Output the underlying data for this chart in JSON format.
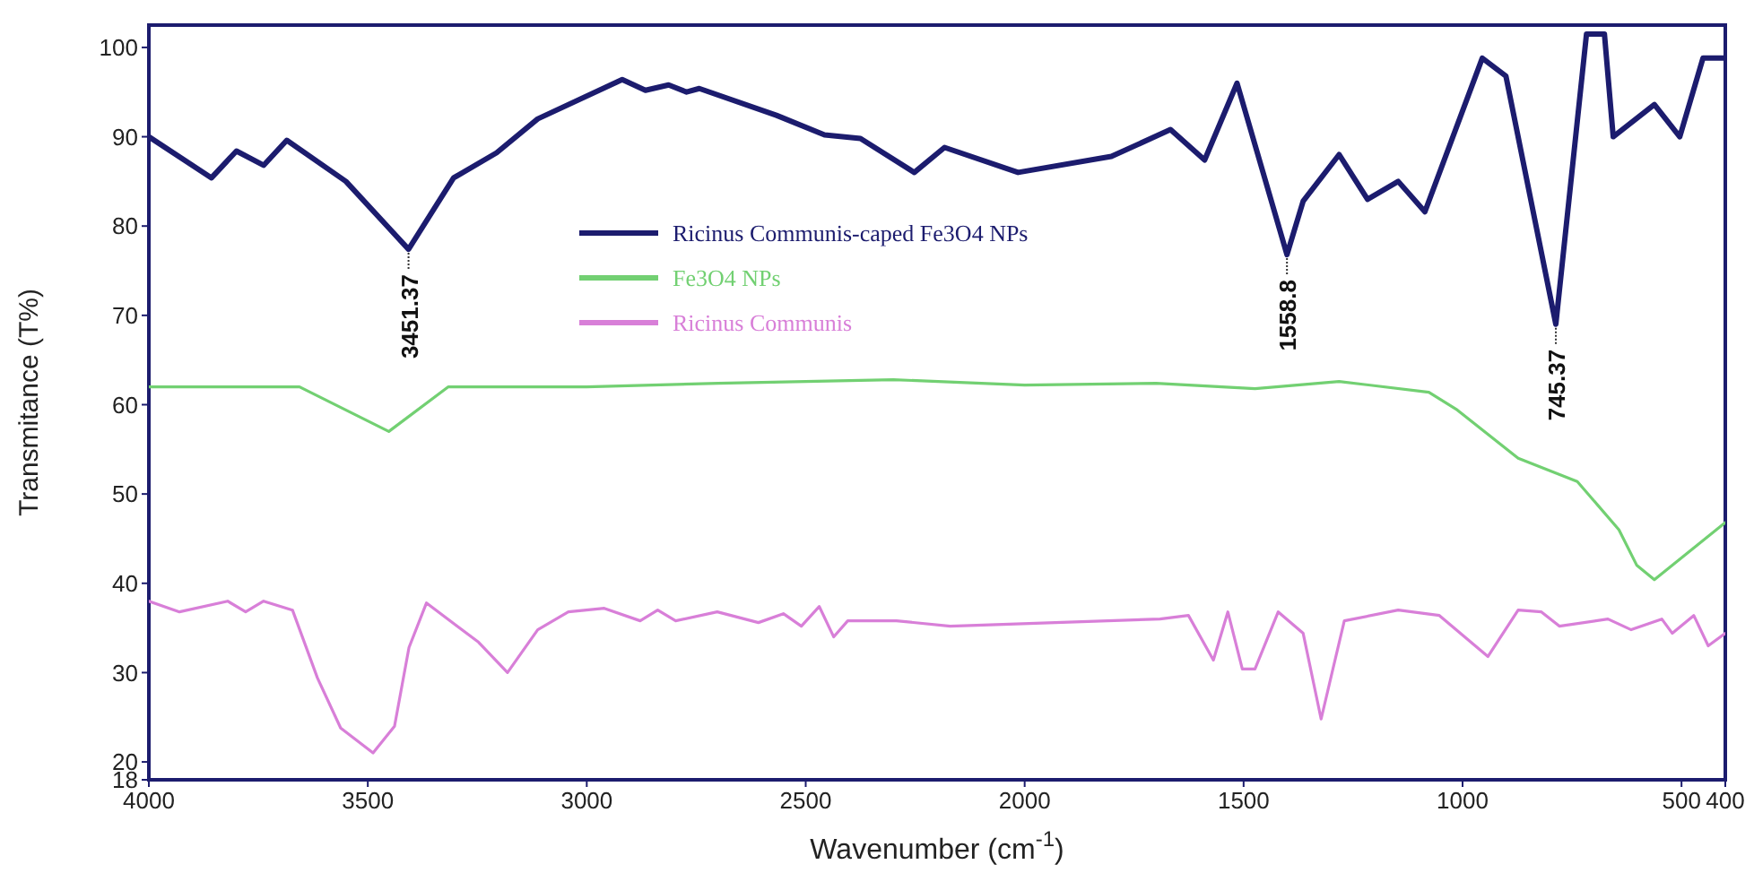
{
  "chart_data": {
    "type": "line",
    "xlabel": "Wavenumber (cm$^{-1}$)",
    "ylabel": "Transmitance (T%)",
    "xlim": [
      4000,
      400
    ],
    "xticks": [
      4000,
      3500,
      3000,
      2500,
      2000,
      1500,
      1000,
      500,
      400
    ],
    "ylim": [
      18,
      102.5
    ],
    "yticks": [
      18,
      20,
      30,
      40,
      50,
      60,
      70,
      80,
      90,
      100
    ],
    "grid": false,
    "legend": "top",
    "marker": "none",
    "line_style": "solid",
    "series": [
      {
        "name": "Ricinus Communis-caped Fe3O4 NPs",
        "color": "#1c1c6e",
        "x": [
          4000,
          3857,
          3800,
          3738,
          3685,
          3550,
          3407,
          3304,
          3206,
          3112,
          2919,
          2866,
          2813,
          2772,
          2743,
          2567,
          2457,
          2375,
          2252,
          2183,
          2015,
          1802,
          1667,
          1589,
          1515,
          1401,
          1364,
          1282,
          1217,
          1147,
          1086,
          955,
          901,
          787,
          717,
          676,
          656,
          562,
          504,
          451,
          400
        ],
        "values": [
          90,
          85.4,
          88.4,
          86.8,
          89.6,
          85,
          77.4,
          85.4,
          88.2,
          92,
          96.4,
          95.2,
          95.8,
          95,
          95.4,
          92.4,
          90.2,
          89.8,
          86,
          88.8,
          86,
          87.8,
          90.8,
          87.4,
          96,
          76.8,
          82.8,
          88,
          83,
          85,
          81.6,
          98.8,
          96.8,
          69,
          101.5,
          101.5,
          90,
          93.6,
          90,
          98.8,
          98.8
        ]
      },
      {
        "name": "Fe3O4 NPs",
        "color": "#72d072",
        "x": [
          4000,
          3656,
          3452,
          3316,
          3000,
          2700,
          2500,
          2300,
          2000,
          1700,
          1474,
          1282,
          1077,
          1012,
          873,
          738,
          643,
          602,
          562,
          400
        ],
        "values": [
          62,
          62,
          57,
          62,
          62,
          62.4,
          62.6,
          62.8,
          62.2,
          62.4,
          61.8,
          62.6,
          61.4,
          59.4,
          54,
          51.4,
          46,
          42,
          40.4,
          46.8
        ]
      },
      {
        "name": "Ricinus Communis",
        "color": "#d87fd8",
        "x": [
          4000,
          3930,
          3820,
          3779,
          3738,
          3672,
          3615,
          3562,
          3488,
          3439,
          3406,
          3366,
          3247,
          3181,
          3112,
          3042,
          2960,
          2878,
          2838,
          2797,
          2702,
          2608,
          2551,
          2510,
          2469,
          2436,
          2404,
          2293,
          2170,
          1691,
          1626,
          1569,
          1536,
          1503,
          1474,
          1421,
          1364,
          1323,
          1298,
          1270,
          1147,
          1053,
          942,
          873,
          820,
          779,
          668,
          615,
          545,
          521,
          472,
          439,
          400
        ],
        "values": [
          38,
          36.8,
          38,
          36.8,
          38,
          37,
          29.4,
          23.8,
          21,
          24,
          32.8,
          37.8,
          33.4,
          30,
          34.8,
          36.8,
          37.2,
          35.8,
          37,
          35.8,
          36.8,
          35.6,
          36.6,
          35.2,
          37.4,
          34,
          35.8,
          35.8,
          35.2,
          36,
          36.4,
          31.4,
          36.8,
          30.4,
          30.4,
          36.8,
          34.4,
          24.8,
          30,
          35.8,
          37,
          36.4,
          31.8,
          37,
          36.8,
          35.2,
          36,
          34.8,
          36,
          34.4,
          36.4,
          33,
          34.4
        ]
      }
    ],
    "annotations": [
      {
        "text": "3451.37",
        "x": 3407,
        "y": 77.4
      },
      {
        "text": "1558.8",
        "x": 1401,
        "y": 76.8
      },
      {
        "text": "745.37",
        "x": 787,
        "y": 69
      }
    ]
  }
}
